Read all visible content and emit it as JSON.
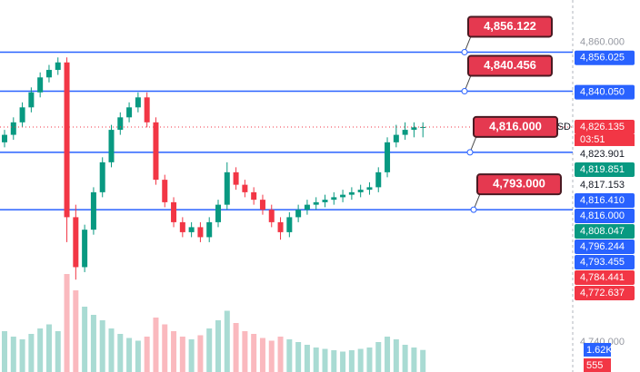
{
  "chart_data": {
    "type": "candlestick",
    "currency": "USD",
    "countdown": "03:51",
    "ylim": [
      4728,
      4877
    ],
    "up_color": "#089981",
    "down_color": "#f23645",
    "open": [
      4820,
      4823,
      4828,
      4834,
      4840,
      4846,
      4849,
      4852,
      4790,
      4770,
      4785,
      4800,
      4812,
      4825,
      4830,
      4834,
      4838,
      4828,
      4805,
      4796,
      4788,
      4784,
      4786,
      4782,
      4788,
      4795,
      4808,
      4803,
      4800,
      4797,
      4793,
      4788,
      4784,
      4790,
      4793,
      4795,
      4796,
      4797,
      4798,
      4799,
      4800,
      4801,
      4802,
      4808,
      4820,
      4823,
      4825,
      4826
    ],
    "high": [
      4825,
      4830,
      4836,
      4842,
      4848,
      4851,
      4854,
      4854,
      4795,
      4787,
      4802,
      4814,
      4827,
      4832,
      4836,
      4840,
      4840,
      4830,
      4807,
      4798,
      4790,
      4788,
      4788,
      4790,
      4797,
      4812,
      4810,
      4805,
      4802,
      4799,
      4795,
      4790,
      4792,
      4795,
      4797,
      4798,
      4799,
      4800,
      4801,
      4802,
      4803,
      4804,
      4810,
      4822,
      4827,
      4828,
      4828,
      4828
    ],
    "low": [
      4818,
      4821,
      4826,
      4832,
      4838,
      4844,
      4847,
      4780,
      4765,
      4768,
      4783,
      4798,
      4810,
      4823,
      4828,
      4832,
      4826,
      4803,
      4794,
      4786,
      4782,
      4782,
      4780,
      4780,
      4786,
      4793,
      4801,
      4798,
      4795,
      4791,
      4786,
      4781,
      4782,
      4788,
      4791,
      4793,
      4794,
      4795,
      4796,
      4797,
      4798,
      4799,
      4800,
      4806,
      4818,
      4821,
      4822,
      4822
    ],
    "close": [
      4823,
      4828,
      4834,
      4840,
      4846,
      4849,
      4852,
      4790,
      4770,
      4785,
      4800,
      4812,
      4825,
      4830,
      4834,
      4838,
      4828,
      4805,
      4796,
      4788,
      4784,
      4786,
      4782,
      4788,
      4795,
      4808,
      4803,
      4800,
      4797,
      4793,
      4788,
      4784,
      4790,
      4793,
      4795,
      4796,
      4797,
      4798,
      4799,
      4800,
      4801,
      4802,
      4808,
      4820,
      4823,
      4825,
      4826,
      4826.135
    ],
    "volume": {
      "ylim": [
        0,
        8000
      ],
      "values": [
        3000,
        2600,
        2400,
        2800,
        3200,
        3500,
        3000,
        7200,
        6000,
        4800,
        4200,
        3800,
        3200,
        2800,
        2500,
        2300,
        2600,
        4000,
        3500,
        3000,
        2600,
        2400,
        2700,
        3200,
        3800,
        4500,
        3600,
        3000,
        2800,
        2500,
        2300,
        2600,
        2400,
        2200,
        2000,
        1800,
        1700,
        1600,
        1500,
        1600,
        1700,
        1800,
        2200,
        2600,
        2400,
        2000,
        1800,
        1620
      ],
      "yticks": [
        {
          "value": 1620,
          "label": "1.62K"
        },
        555
      ],
      "ytick_colors": [
        "#2962ff",
        "#f23645"
      ]
    },
    "level_color": "#2962ff",
    "callout_color": "#e53950",
    "levels": [
      {
        "value": 4856.122,
        "label": "4,856.122"
      },
      {
        "value": 4840.456,
        "label": "4,840.456"
      },
      {
        "value": 4816,
        "label": "4,816.000"
      },
      {
        "value": 4793,
        "label": "4,793.000"
      }
    ],
    "yticks": [
      {
        "value": 4860,
        "label": "4,860.000"
      },
      {
        "value": 4856.025,
        "label": "4,856.025"
      },
      {
        "value": 4840.05,
        "label": "4,840.050"
      },
      {
        "value": 4826.135,
        "label": "4,826.135"
      },
      {
        "value": 4823.901,
        "label": "4,823.901"
      },
      {
        "value": 4819.851,
        "label": "4,819.851"
      },
      {
        "value": 4817.153,
        "label": "4,817.153"
      },
      {
        "value": 4816.41,
        "label": "4,816.410"
      },
      {
        "value": 4816,
        "label": "4,816.000"
      },
      {
        "value": 4808.047,
        "label": "4,808.047"
      },
      {
        "value": 4796.244,
        "label": "4,796.244"
      },
      {
        "value": 4793.455,
        "label": "4,793.455"
      },
      {
        "value": 4784.441,
        "label": "4,784.441"
      },
      {
        "value": 4772.637,
        "label": "4,772.637"
      },
      {
        "value": 4740,
        "label": "4,740.000"
      }
    ],
    "ytick_colors": [
      "#ffffff",
      "#2962ff",
      "#2962ff",
      "#f23645",
      "#ffffff",
      "#089981",
      "#ffffff",
      "#2962ff",
      "#2962ff",
      "#089981",
      "#2962ff",
      "#2962ff",
      "#f23645",
      "#f23645",
      "#ffffff"
    ]
  }
}
